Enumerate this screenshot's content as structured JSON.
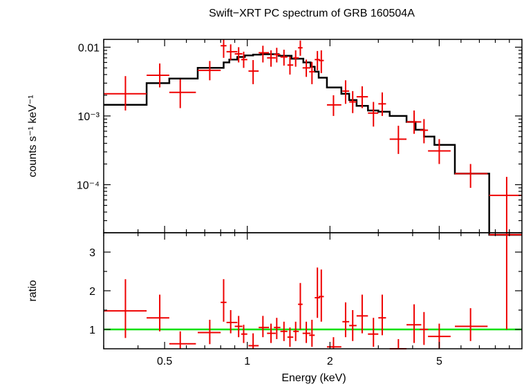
{
  "chart_data": [
    {
      "type": "scatter",
      "title": "Swift−XRT PC spectrum of GRB 160504A",
      "ylabel": "counts s⁻¹ keV⁻¹",
      "xscale": "log",
      "yscale": "log",
      "xlim": [
        0.3,
        10
      ],
      "ylim": [
        2e-05,
        0.013
      ],
      "ytick_labels": [
        "0.01",
        "10⁻³",
        "10⁻⁴"
      ],
      "ytick_values": [
        0.01,
        0.001,
        0.0001
      ],
      "colors": {
        "data": "#ee0000",
        "model": "#000000"
      },
      "series": [
        {
          "role": "data",
          "points": [
            {
              "x": 0.36,
              "xlo": 0.3,
              "xhi": 0.43,
              "y": 0.0021,
              "ylo": 0.0012,
              "yhi": 0.0038
            },
            {
              "x": 0.48,
              "xlo": 0.43,
              "xhi": 0.52,
              "y": 0.0039,
              "ylo": 0.0026,
              "yhi": 0.0058
            },
            {
              "x": 0.57,
              "xlo": 0.52,
              "xhi": 0.65,
              "y": 0.0022,
              "ylo": 0.0013,
              "yhi": 0.0034
            },
            {
              "x": 0.73,
              "xlo": 0.66,
              "xhi": 0.8,
              "y": 0.0046,
              "ylo": 0.0033,
              "yhi": 0.0063
            },
            {
              "x": 0.82,
              "xlo": 0.8,
              "xhi": 0.84,
              "y": 0.0105,
              "ylo": 0.007,
              "yhi": 0.014
            },
            {
              "x": 0.87,
              "xlo": 0.84,
              "xhi": 0.92,
              "y": 0.0086,
              "ylo": 0.0065,
              "yhi": 0.011
            },
            {
              "x": 0.93,
              "xlo": 0.9,
              "xhi": 0.96,
              "y": 0.008,
              "ylo": 0.006,
              "yhi": 0.01
            },
            {
              "x": 0.97,
              "xlo": 0.95,
              "xhi": 1.0,
              "y": 0.0066,
              "ylo": 0.005,
              "yhi": 0.0086
            },
            {
              "x": 1.05,
              "xlo": 1.01,
              "xhi": 1.1,
              "y": 0.0045,
              "ylo": 0.0029,
              "yhi": 0.0065
            },
            {
              "x": 1.14,
              "xlo": 1.1,
              "xhi": 1.2,
              "y": 0.0083,
              "ylo": 0.006,
              "yhi": 0.0105
            },
            {
              "x": 1.22,
              "xlo": 1.18,
              "xhi": 1.27,
              "y": 0.007,
              "ylo": 0.0052,
              "yhi": 0.009
            },
            {
              "x": 1.28,
              "xlo": 1.25,
              "xhi": 1.32,
              "y": 0.0078,
              "ylo": 0.006,
              "yhi": 0.0098
            },
            {
              "x": 1.36,
              "xlo": 1.32,
              "xhi": 1.4,
              "y": 0.0072,
              "ylo": 0.0054,
              "yhi": 0.0092
            },
            {
              "x": 1.43,
              "xlo": 1.4,
              "xhi": 1.47,
              "y": 0.0055,
              "ylo": 0.004,
              "yhi": 0.0073
            },
            {
              "x": 1.5,
              "xlo": 1.47,
              "xhi": 1.54,
              "y": 0.007,
              "ylo": 0.0052,
              "yhi": 0.009
            },
            {
              "x": 1.56,
              "xlo": 1.53,
              "xhi": 1.59,
              "y": 0.0098,
              "ylo": 0.0075,
              "yhi": 0.0125
            },
            {
              "x": 1.64,
              "xlo": 1.59,
              "xhi": 1.7,
              "y": 0.005,
              "ylo": 0.0037,
              "yhi": 0.0066
            },
            {
              "x": 1.72,
              "xlo": 1.68,
              "xhi": 1.76,
              "y": 0.0044,
              "ylo": 0.0029,
              "yhi": 0.0061
            },
            {
              "x": 1.8,
              "xlo": 1.76,
              "xhi": 1.84,
              "y": 0.0066,
              "ylo": 0.0046,
              "yhi": 0.0088
            },
            {
              "x": 1.86,
              "xlo": 1.82,
              "xhi": 1.9,
              "y": 0.0064,
              "ylo": 0.0042,
              "yhi": 0.009
            },
            {
              "x": 2.06,
              "xlo": 1.95,
              "xhi": 2.2,
              "y": 0.00145,
              "ylo": 0.001,
              "yhi": 0.002
            },
            {
              "x": 2.28,
              "xlo": 2.22,
              "xhi": 2.35,
              "y": 0.0023,
              "ylo": 0.0015,
              "yhi": 0.0033
            },
            {
              "x": 2.42,
              "xlo": 2.35,
              "xhi": 2.5,
              "y": 0.0016,
              "ylo": 0.0011,
              "yhi": 0.0023
            },
            {
              "x": 2.62,
              "xlo": 2.5,
              "xhi": 2.75,
              "y": 0.0019,
              "ylo": 0.0013,
              "yhi": 0.0027
            },
            {
              "x": 2.88,
              "xlo": 2.75,
              "xhi": 3.0,
              "y": 0.0011,
              "ylo": 0.0007,
              "yhi": 0.0016
            },
            {
              "x": 3.1,
              "xlo": 3.0,
              "xhi": 3.2,
              "y": 0.0015,
              "ylo": 0.001,
              "yhi": 0.0022
            },
            {
              "x": 3.55,
              "xlo": 3.3,
              "xhi": 3.8,
              "y": 0.00046,
              "ylo": 0.00028,
              "yhi": 0.00072
            },
            {
              "x": 4.05,
              "xlo": 3.8,
              "xhi": 4.3,
              "y": 0.00082,
              "ylo": 0.00055,
              "yhi": 0.0012
            },
            {
              "x": 4.4,
              "xlo": 4.25,
              "xhi": 4.55,
              "y": 0.00062,
              "ylo": 0.0004,
              "yhi": 0.0009
            },
            {
              "x": 5.0,
              "xlo": 4.55,
              "xhi": 5.5,
              "y": 0.00031,
              "ylo": 0.0002,
              "yhi": 0.00046
            },
            {
              "x": 6.5,
              "xlo": 5.7,
              "xhi": 7.5,
              "y": 0.000145,
              "ylo": 9e-05,
              "yhi": 0.0002
            },
            {
              "x": 8.8,
              "xlo": 7.6,
              "xhi": 10.0,
              "y": 7e-05,
              "ylo": 2e-05,
              "yhi": 0.00013
            }
          ]
        },
        {
          "role": "model",
          "steps": [
            {
              "xlo": 0.3,
              "xhi": 0.43,
              "y": 0.00145
            },
            {
              "xlo": 0.43,
              "xhi": 0.52,
              "y": 0.003
            },
            {
              "xlo": 0.52,
              "xhi": 0.66,
              "y": 0.0035
            },
            {
              "xlo": 0.66,
              "xhi": 0.82,
              "y": 0.005
            },
            {
              "xlo": 0.82,
              "xhi": 0.86,
              "y": 0.006
            },
            {
              "xlo": 0.86,
              "xhi": 0.92,
              "y": 0.0066
            },
            {
              "xlo": 0.92,
              "xhi": 0.98,
              "y": 0.0072
            },
            {
              "xlo": 0.98,
              "xhi": 1.05,
              "y": 0.0076
            },
            {
              "xlo": 1.05,
              "xhi": 1.12,
              "y": 0.0078
            },
            {
              "xlo": 1.12,
              "xhi": 1.3,
              "y": 0.0079
            },
            {
              "xlo": 1.3,
              "xhi": 1.45,
              "y": 0.0075
            },
            {
              "xlo": 1.45,
              "xhi": 1.6,
              "y": 0.0068
            },
            {
              "xlo": 1.6,
              "xhi": 1.7,
              "y": 0.006
            },
            {
              "xlo": 1.7,
              "xhi": 1.76,
              "y": 0.0052
            },
            {
              "xlo": 1.76,
              "xhi": 1.82,
              "y": 0.0044
            },
            {
              "xlo": 1.82,
              "xhi": 1.95,
              "y": 0.0036
            },
            {
              "xlo": 1.95,
              "xhi": 2.2,
              "y": 0.0026
            },
            {
              "xlo": 2.2,
              "xhi": 2.35,
              "y": 0.0021
            },
            {
              "xlo": 2.35,
              "xhi": 2.5,
              "y": 0.0017
            },
            {
              "xlo": 2.5,
              "xhi": 2.75,
              "y": 0.0014
            },
            {
              "xlo": 2.75,
              "xhi": 3.0,
              "y": 0.0012
            },
            {
              "xlo": 3.0,
              "xhi": 3.3,
              "y": 0.00115
            },
            {
              "xlo": 3.3,
              "xhi": 3.8,
              "y": 0.001
            },
            {
              "xlo": 3.8,
              "xhi": 4.1,
              "y": 0.00082
            },
            {
              "xlo": 4.1,
              "xhi": 4.4,
              "y": 0.00063
            },
            {
              "xlo": 4.4,
              "xhi": 4.8,
              "y": 0.0005
            },
            {
              "xlo": 4.8,
              "xhi": 5.7,
              "y": 0.00038
            },
            {
              "xlo": 5.7,
              "xhi": 7.6,
              "y": 0.000145
            },
            {
              "xlo": 7.6,
              "xhi": 10.0,
              "y": 1.5e-05
            }
          ]
        }
      ]
    },
    {
      "type": "scatter",
      "xlabel": "Energy (keV)",
      "ylabel": "ratio",
      "xscale": "log",
      "xlim": [
        0.3,
        10
      ],
      "ylim": [
        0.5,
        3.5
      ],
      "xtick_labels": [
        "0.5",
        "1",
        "2",
        "5"
      ],
      "xtick_values": [
        0.5,
        1,
        2,
        5
      ],
      "ytick_labels": [
        "1",
        "2",
        "3"
      ],
      "ytick_values": [
        1,
        2,
        3
      ],
      "reference_line": 1,
      "colors": {
        "data": "#ee0000",
        "reference": "#00e000"
      },
      "series": [
        {
          "role": "data",
          "points": [
            {
              "x": 0.36,
              "xlo": 0.3,
              "xhi": 0.43,
              "y": 1.48,
              "ylo": 0.78,
              "yhi": 2.3
            },
            {
              "x": 0.48,
              "xlo": 0.43,
              "xhi": 0.52,
              "y": 1.3,
              "ylo": 0.95,
              "yhi": 1.9
            },
            {
              "x": 0.57,
              "xlo": 0.52,
              "xhi": 0.65,
              "y": 0.63,
              "ylo": 0.5,
              "yhi": 0.95
            },
            {
              "x": 0.73,
              "xlo": 0.66,
              "xhi": 0.8,
              "y": 0.92,
              "ylo": 0.62,
              "yhi": 1.25
            },
            {
              "x": 0.82,
              "xlo": 0.8,
              "xhi": 0.84,
              "y": 1.7,
              "ylo": 1.2,
              "yhi": 2.3
            },
            {
              "x": 0.87,
              "xlo": 0.84,
              "xhi": 0.92,
              "y": 1.18,
              "ylo": 0.9,
              "yhi": 1.5
            },
            {
              "x": 0.93,
              "xlo": 0.9,
              "xhi": 0.96,
              "y": 1.08,
              "ylo": 0.8,
              "yhi": 1.35
            },
            {
              "x": 0.97,
              "xlo": 0.95,
              "xhi": 1.0,
              "y": 0.88,
              "ylo": 0.65,
              "yhi": 1.12
            },
            {
              "x": 1.05,
              "xlo": 1.01,
              "xhi": 1.1,
              "y": 0.58,
              "ylo": 0.45,
              "yhi": 0.9
            },
            {
              "x": 1.14,
              "xlo": 1.1,
              "xhi": 1.2,
              "y": 1.05,
              "ylo": 0.8,
              "yhi": 1.35
            },
            {
              "x": 1.22,
              "xlo": 1.18,
              "xhi": 1.27,
              "y": 0.9,
              "ylo": 0.65,
              "yhi": 1.15
            },
            {
              "x": 1.28,
              "xlo": 1.25,
              "xhi": 1.32,
              "y": 1.05,
              "ylo": 0.75,
              "yhi": 1.3
            },
            {
              "x": 1.36,
              "xlo": 1.32,
              "xhi": 1.4,
              "y": 0.95,
              "ylo": 0.7,
              "yhi": 1.2
            },
            {
              "x": 1.43,
              "xlo": 1.4,
              "xhi": 1.47,
              "y": 0.8,
              "ylo": 0.55,
              "yhi": 1.05
            },
            {
              "x": 1.5,
              "xlo": 1.47,
              "xhi": 1.54,
              "y": 0.95,
              "ylo": 0.7,
              "yhi": 1.2
            },
            {
              "x": 1.56,
              "xlo": 1.53,
              "xhi": 1.59,
              "y": 1.65,
              "ylo": 1.0,
              "yhi": 2.2
            },
            {
              "x": 1.64,
              "xlo": 1.59,
              "xhi": 1.7,
              "y": 0.9,
              "ylo": 0.65,
              "yhi": 1.2
            },
            {
              "x": 1.72,
              "xlo": 1.68,
              "xhi": 1.76,
              "y": 0.85,
              "ylo": 0.55,
              "yhi": 1.25
            },
            {
              "x": 1.8,
              "xlo": 1.76,
              "xhi": 1.84,
              "y": 1.82,
              "ylo": 1.3,
              "yhi": 2.6
            },
            {
              "x": 1.86,
              "xlo": 1.82,
              "xhi": 1.9,
              "y": 1.85,
              "ylo": 1.2,
              "yhi": 2.55
            },
            {
              "x": 2.06,
              "xlo": 1.95,
              "xhi": 2.2,
              "y": 0.55,
              "ylo": 0.4,
              "yhi": 0.8
            },
            {
              "x": 2.28,
              "xlo": 2.22,
              "xhi": 2.35,
              "y": 1.2,
              "ylo": 0.8,
              "yhi": 1.7
            },
            {
              "x": 2.42,
              "xlo": 2.35,
              "xhi": 2.5,
              "y": 1.1,
              "ylo": 0.7,
              "yhi": 1.5
            },
            {
              "x": 2.62,
              "xlo": 2.5,
              "xhi": 2.75,
              "y": 1.35,
              "ylo": 0.9,
              "yhi": 1.9
            },
            {
              "x": 2.88,
              "xlo": 2.75,
              "xhi": 3.0,
              "y": 0.88,
              "ylo": 0.55,
              "yhi": 1.3
            },
            {
              "x": 3.1,
              "xlo": 3.0,
              "xhi": 3.2,
              "y": 1.3,
              "ylo": 0.85,
              "yhi": 1.9
            },
            {
              "x": 3.55,
              "xlo": 3.3,
              "xhi": 3.8,
              "y": 0.5,
              "ylo": 0.4,
              "yhi": 0.75
            },
            {
              "x": 4.05,
              "xlo": 3.8,
              "xhi": 4.3,
              "y": 1.12,
              "ylo": 0.65,
              "yhi": 1.65
            },
            {
              "x": 4.4,
              "xlo": 4.25,
              "xhi": 4.55,
              "y": 1.0,
              "ylo": 0.6,
              "yhi": 1.45
            },
            {
              "x": 5.0,
              "xlo": 4.55,
              "xhi": 5.5,
              "y": 0.82,
              "ylo": 0.5,
              "yhi": 1.15
            },
            {
              "x": 6.5,
              "xlo": 5.7,
              "xhi": 7.5,
              "y": 1.08,
              "ylo": 0.7,
              "yhi": 1.55
            },
            {
              "x": 8.8,
              "xlo": 7.6,
              "xhi": 10.0,
              "y": 3.45,
              "ylo": 1.0,
              "yhi": 4.5
            }
          ]
        }
      ]
    }
  ]
}
